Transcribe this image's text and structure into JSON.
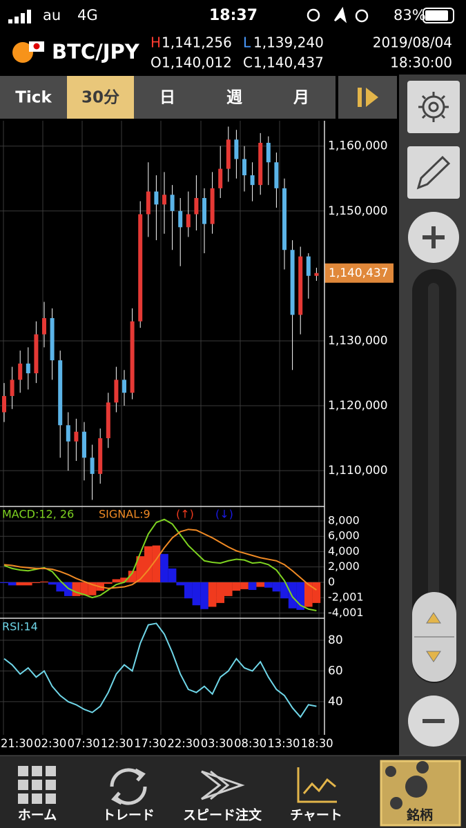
{
  "status_bar": {
    "carrier": "au",
    "network": "4G",
    "time": "18:37",
    "battery": "83%"
  },
  "header": {
    "symbol": "BTC/JPY",
    "ohlc": [
      {
        "key": "H",
        "value": "1,141,256"
      },
      {
        "key": "L",
        "value": "1,139,240"
      },
      {
        "key": "O",
        "value": "1,140,012"
      },
      {
        "key": "C",
        "value": "1,140,437"
      }
    ],
    "date": "2019/08/04",
    "time": "18:30:00"
  },
  "tabs": [
    "Tick",
    "30分",
    "日",
    "週",
    "月"
  ],
  "selected_tab": 1,
  "chart_data": [
    {
      "type": "candlestick",
      "x_labels": [
        "21:30",
        "02:30",
        "07:30",
        "12:30",
        "17:30",
        "22:30",
        "03:30",
        "08:30",
        "13:30",
        "18:30"
      ],
      "open": [
        1119000,
        1121500,
        1124000,
        1126500,
        1125000,
        1131000,
        1133500,
        1127000,
        1117000,
        1114500,
        1116000,
        1112000,
        1109500,
        1115000,
        1120500,
        1124000,
        1122000,
        1133000,
        1149500,
        1153000,
        1151000,
        1152500,
        1150000,
        1147500,
        1149500,
        1152000,
        1148000,
        1153500,
        1156500,
        1161000,
        1158000,
        1155500,
        1154000,
        1160500,
        1157500,
        1153500,
        1144000,
        1134000,
        1143000,
        1140012
      ],
      "close": [
        1121500,
        1124000,
        1126500,
        1125000,
        1131000,
        1133500,
        1127000,
        1117000,
        1114500,
        1116000,
        1112000,
        1109500,
        1115000,
        1120500,
        1124000,
        1122000,
        1133000,
        1149500,
        1153000,
        1151000,
        1152500,
        1150000,
        1147500,
        1149500,
        1152000,
        1148000,
        1153500,
        1156500,
        1161000,
        1158000,
        1155500,
        1154000,
        1160500,
        1157500,
        1153500,
        1144000,
        1134000,
        1143000,
        1140012,
        1140437
      ],
      "high": [
        1123500,
        1126000,
        1128500,
        1129000,
        1133000,
        1136000,
        1135000,
        1128500,
        1119000,
        1118000,
        1117500,
        1114000,
        1116500,
        1122000,
        1126000,
        1125500,
        1135000,
        1151500,
        1157500,
        1155500,
        1156000,
        1154000,
        1152000,
        1153000,
        1155500,
        1153500,
        1156000,
        1160000,
        1163000,
        1162500,
        1160000,
        1157500,
        1162000,
        1161500,
        1159000,
        1155000,
        1145500,
        1144500,
        1143500,
        1141256
      ],
      "low": [
        1117500,
        1119500,
        1122000,
        1122500,
        1123500,
        1129000,
        1124000,
        1112000,
        1110000,
        1111500,
        1108500,
        1105500,
        1108000,
        1113500,
        1119000,
        1120000,
        1121000,
        1132000,
        1146000,
        1145500,
        1146500,
        1144000,
        1141500,
        1146000,
        1147000,
        1143500,
        1146500,
        1152000,
        1154500,
        1155000,
        1153000,
        1151500,
        1152500,
        1154000,
        1150500,
        1141000,
        1125500,
        1131000,
        1136500,
        1139240
      ],
      "up_color": "#e53935",
      "down_color": "#5bb4e8",
      "ylim": [
        1104700,
        1163900
      ],
      "yticks": [
        {
          "value": 1160000,
          "label": "1,160,000"
        },
        {
          "value": 1150000,
          "label": "1,150,000"
        },
        {
          "value": 1130000,
          "label": "1,130,000"
        },
        {
          "value": 1120000,
          "label": "1,120,000"
        },
        {
          "value": 1110000,
          "label": "1,110,000"
        }
      ],
      "current_label": "1,140,437",
      "current_color": "#e0883a",
      "grid": true
    },
    {
      "type": "macd",
      "series": [
        {
          "name": "MACD:12, 26",
          "color": "#7ed321",
          "values": [
            2200,
            1800,
            1600,
            1500,
            1700,
            1900,
            1400,
            200,
            -800,
            -1300,
            -1600,
            -2000,
            -1700,
            -1000,
            -300,
            0,
            1200,
            3800,
            6300,
            7800,
            8200,
            7600,
            6200,
            4800,
            3800,
            2800,
            2600,
            2500,
            2800,
            3000,
            2900,
            2500,
            2600,
            2300,
            1600,
            200,
            -1900,
            -3000,
            -3500,
            -3700
          ]
        },
        {
          "name": "SIGNAL:9",
          "color": "#f08a24",
          "values": [
            2300,
            2200,
            2000,
            1900,
            1800,
            1800,
            1700,
            1400,
            1000,
            500,
            100,
            -300,
            -600,
            -800,
            -700,
            -600,
            -300,
            400,
            1600,
            3000,
            4500,
            5800,
            6600,
            6900,
            6800,
            6300,
            5800,
            5200,
            4600,
            4100,
            3800,
            3500,
            3200,
            3000,
            2800,
            2300,
            1500,
            600,
            -300,
            -1000
          ]
        }
      ],
      "histogram": {
        "up_label": "(↑)",
        "down_label": "(↓)",
        "up_color": "#f03a1e",
        "down_color": "#1a1ae6",
        "values": [
          -100,
          -400,
          -400,
          -400,
          -100,
          100,
          -300,
          -1200,
          -1800,
          -1800,
          -1700,
          -1700,
          -1100,
          -200,
          400,
          600,
          1500,
          3400,
          4700,
          4800,
          3700,
          1800,
          -400,
          -2100,
          -3000,
          -3500,
          -3200,
          -2700,
          -1800,
          -1100,
          -900,
          -1000,
          -600,
          -700,
          -1200,
          -2100,
          -3400,
          -3600,
          -3200,
          -2700
        ]
      },
      "ylim": [
        -4600,
        9800
      ],
      "yticks": [
        {
          "value": 8000,
          "label": "8,000"
        },
        {
          "value": 6000,
          "label": "6,000"
        },
        {
          "value": 4000,
          "label": "4,000"
        },
        {
          "value": 2000,
          "label": "2,000"
        },
        0,
        {
          "value": -2001,
          "label": "-2,001"
        },
        {
          "value": -4001,
          "label": "-4,001"
        }
      ],
      "grid": true
    },
    {
      "type": "line",
      "series": [
        {
          "name": "RSI:14",
          "color": "#6fd6e8",
          "values": [
            68,
            64,
            58,
            62,
            56,
            60,
            50,
            44,
            40,
            38,
            35,
            33,
            37,
            46,
            58,
            64,
            60,
            78,
            90,
            91,
            84,
            72,
            58,
            48,
            46,
            50,
            45,
            56,
            60,
            68,
            62,
            60,
            66,
            56,
            48,
            44,
            36,
            30,
            38,
            37
          ]
        }
      ],
      "ylim": [
        18.4,
        93.9
      ],
      "yticks": [
        80,
        60,
        40
      ],
      "grid": true
    }
  ],
  "nav": [
    "ホーム",
    "トレード",
    "スピード注文",
    "チャート",
    "銘柄"
  ]
}
